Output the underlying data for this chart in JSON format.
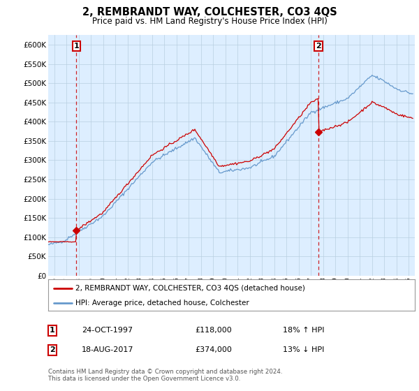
{
  "title": "2, REMBRANDT WAY, COLCHESTER, CO3 4QS",
  "subtitle": "Price paid vs. HM Land Registry's House Price Index (HPI)",
  "ylim": [
    0,
    625000
  ],
  "yticks": [
    0,
    50000,
    100000,
    150000,
    200000,
    250000,
    300000,
    350000,
    400000,
    450000,
    500000,
    550000,
    600000
  ],
  "sale1_date": 1997.81,
  "sale1_price": 118000,
  "sale1_label": "1",
  "sale2_date": 2017.63,
  "sale2_price": 374000,
  "sale2_label": "2",
  "property_color": "#cc0000",
  "hpi_color": "#6699cc",
  "grid_color": "#c8d8e8",
  "background_color": "#ddeeff",
  "plot_bg": "#ddeeff",
  "legend_property": "2, REMBRANDT WAY, COLCHESTER, CO3 4QS (detached house)",
  "legend_hpi": "HPI: Average price, detached house, Colchester",
  "annotation1_date": "24-OCT-1997",
  "annotation1_price": "£118,000",
  "annotation1_hpi": "18% ↑ HPI",
  "annotation2_date": "18-AUG-2017",
  "annotation2_price": "£374,000",
  "annotation2_hpi": "13% ↓ HPI",
  "footer": "Contains HM Land Registry data © Crown copyright and database right 2024.\nThis data is licensed under the Open Government Licence v3.0.",
  "xmin": 1995.5,
  "xmax": 2025.5
}
